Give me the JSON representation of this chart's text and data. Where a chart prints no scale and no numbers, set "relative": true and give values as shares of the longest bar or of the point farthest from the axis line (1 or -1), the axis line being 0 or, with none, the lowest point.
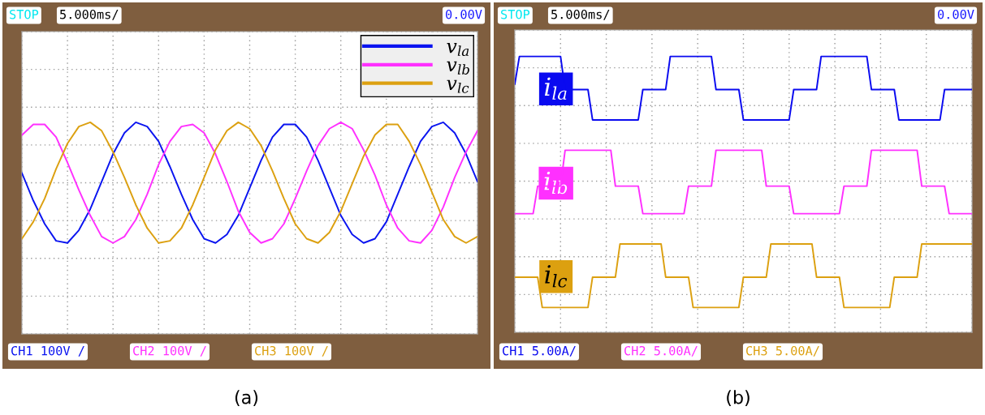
{
  "chart_data": [
    {
      "type": "line",
      "relative": true,
      "grid": true,
      "tick_labels": false,
      "legend": "top right",
      "xlabel": "(a)",
      "annotations": [
        "STOP",
        "5.000ms/",
        "0.00V",
        "CH1 100V /",
        "CH2 100V /",
        "CH3 100V /"
      ],
      "categories": [
        null,
        null,
        null,
        null,
        null,
        null,
        null,
        null,
        null,
        null,
        null,
        null,
        null,
        null,
        null,
        null,
        null,
        null,
        null,
        null,
        null,
        null,
        null,
        null,
        null,
        null,
        null,
        null,
        null,
        null,
        null,
        null,
        null,
        null,
        null,
        null,
        null,
        null,
        null,
        null,
        null
      ],
      "series": [
        {
          "name": "v$_{la}$",
          "color": "#0a14f0",
          "values": [
            0.76,
            0.63,
            0.52,
            0.44,
            0.43,
            0.49,
            0.59,
            0.72,
            0.85,
            0.95,
            1.0,
            0.98,
            0.91,
            0.79,
            0.66,
            0.54,
            0.45,
            0.43,
            0.47,
            0.56,
            0.69,
            0.82,
            0.93,
            0.99,
            0.99,
            0.93,
            0.82,
            0.69,
            0.56,
            0.47,
            0.43,
            0.45,
            0.53,
            0.66,
            0.79,
            0.91,
            0.98,
            1.0,
            0.95,
            0.85,
            0.72
          ]
        },
        {
          "name": "v$_{lb}$",
          "color": "#ff30ff",
          "values": [
            0.94,
            0.99,
            0.99,
            0.93,
            0.81,
            0.68,
            0.56,
            0.46,
            0.43,
            0.46,
            0.54,
            0.66,
            0.8,
            0.91,
            0.98,
            0.99,
            0.95,
            0.85,
            0.72,
            0.58,
            0.48,
            0.43,
            0.45,
            0.52,
            0.64,
            0.77,
            0.89,
            0.97,
            1.0,
            0.97,
            0.87,
            0.75,
            0.61,
            0.5,
            0.44,
            0.43,
            0.49,
            0.6,
            0.74,
            0.86,
            0.96
          ]
        },
        {
          "name": "v$_{lc}$",
          "color": "#dca010",
          "values": [
            0.45,
            0.53,
            0.64,
            0.78,
            0.9,
            0.98,
            1.0,
            0.96,
            0.86,
            0.74,
            0.61,
            0.5,
            0.43,
            0.44,
            0.5,
            0.61,
            0.74,
            0.87,
            0.96,
            1.0,
            0.97,
            0.89,
            0.77,
            0.64,
            0.52,
            0.45,
            0.43,
            0.48,
            0.58,
            0.71,
            0.84,
            0.94,
            0.99,
            0.99,
            0.91,
            0.8,
            0.67,
            0.54,
            0.46,
            0.43,
            0.46
          ]
        }
      ]
    },
    {
      "type": "line",
      "relative": true,
      "grid": true,
      "tick_labels": false,
      "xlabel": "(b)",
      "annotations": [
        "STOP",
        "5.000ms/",
        "0.00V",
        "CH1 5.00A/",
        "CH2 5.00A/",
        "CH3 5.00A/"
      ],
      "categories": [
        null,
        null,
        null,
        null,
        null,
        null,
        null,
        null,
        null,
        null,
        null,
        null,
        null,
        null,
        null,
        null,
        null,
        null,
        null,
        null,
        null,
        null,
        null,
        null,
        null,
        null,
        null,
        null,
        null,
        null,
        null,
        null,
        null,
        null,
        null,
        null,
        null,
        null,
        null,
        null,
        null,
        null,
        null,
        null,
        null,
        null,
        null,
        null,
        null,
        null,
        null,
        null,
        null,
        null,
        null,
        null,
        null,
        null,
        null,
        null,
        null,
        null,
        null,
        null,
        null,
        null,
        null,
        null,
        null,
        null,
        null,
        null,
        null,
        null,
        null,
        null,
        null,
        null,
        null,
        null,
        null,
        null,
        null,
        null,
        null,
        null,
        null,
        null,
        null,
        null,
        null,
        null,
        null,
        null,
        null,
        null,
        null,
        null,
        null,
        null,
        null
      ],
      "series": [
        {
          "name": "i$_{la}$",
          "color": "#0a0af0",
          "values": [
            0.9,
            1,
            1,
            1,
            1,
            1,
            1,
            1,
            1,
            1,
            1,
            0.88,
            0.88,
            0.88,
            0.88,
            0.88,
            0.88,
            0.77,
            0.77,
            0.77,
            0.77,
            0.77,
            0.77,
            0.77,
            0.77,
            0.77,
            0.77,
            0.77,
            0.88,
            0.88,
            0.88,
            0.88,
            0.88,
            0.88,
            1,
            1,
            1,
            1,
            1,
            1,
            1,
            1,
            1,
            1,
            0.88,
            0.88,
            0.88,
            0.88,
            0.88,
            0.88,
            0.77,
            0.77,
            0.77,
            0.77,
            0.77,
            0.77,
            0.77,
            0.77,
            0.77,
            0.77,
            0.77,
            0.88,
            0.88,
            0.88,
            0.88,
            0.88,
            0.88,
            1,
            1,
            1,
            1,
            1,
            1,
            1,
            1,
            1,
            1,
            1,
            0.88,
            0.88,
            0.88,
            0.88,
            0.88,
            0.88,
            0.77,
            0.77,
            0.77,
            0.77,
            0.77,
            0.77,
            0.77,
            0.77,
            0.77,
            0.77,
            0.88,
            0.88,
            0.88,
            0.88,
            0.88,
            0.88,
            0.88
          ]
        },
        {
          "name": "i$_{lb}$",
          "color": "#ff30ff",
          "values": [
            0.43,
            0.43,
            0.43,
            0.43,
            0.43,
            0.53,
            0.53,
            0.53,
            0.53,
            0.53,
            0.53,
            0.66,
            0.66,
            0.66,
            0.66,
            0.66,
            0.66,
            0.66,
            0.66,
            0.66,
            0.66,
            0.66,
            0.53,
            0.53,
            0.53,
            0.53,
            0.53,
            0.53,
            0.43,
            0.43,
            0.43,
            0.43,
            0.43,
            0.43,
            0.43,
            0.43,
            0.43,
            0.43,
            0.53,
            0.53,
            0.53,
            0.53,
            0.53,
            0.53,
            0.66,
            0.66,
            0.66,
            0.66,
            0.66,
            0.66,
            0.66,
            0.66,
            0.66,
            0.66,
            0.66,
            0.53,
            0.53,
            0.53,
            0.53,
            0.53,
            0.53,
            0.43,
            0.43,
            0.43,
            0.43,
            0.43,
            0.43,
            0.43,
            0.43,
            0.43,
            0.43,
            0.43,
            0.53,
            0.53,
            0.53,
            0.53,
            0.53,
            0.53,
            0.66,
            0.66,
            0.66,
            0.66,
            0.66,
            0.66,
            0.66,
            0.66,
            0.66,
            0.66,
            0.66,
            0.53,
            0.53,
            0.53,
            0.53,
            0.53,
            0.53,
            0.43,
            0.43,
            0.43,
            0.43,
            0.43,
            0.43
          ]
        },
        {
          "name": "i$_{lc}$",
          "color": "#dca010",
          "values": [
            0.2,
            0.2,
            0.2,
            0.2,
            0.2,
            0.2,
            0.09,
            0.09,
            0.09,
            0.09,
            0.09,
            0.09,
            0.09,
            0.09,
            0.09,
            0.09,
            0.09,
            0.2,
            0.2,
            0.2,
            0.2,
            0.2,
            0.2,
            0.32,
            0.32,
            0.32,
            0.32,
            0.32,
            0.32,
            0.32,
            0.32,
            0.32,
            0.32,
            0.2,
            0.2,
            0.2,
            0.2,
            0.2,
            0.2,
            0.09,
            0.09,
            0.09,
            0.09,
            0.09,
            0.09,
            0.09,
            0.09,
            0.09,
            0.09,
            0.09,
            0.2,
            0.2,
            0.2,
            0.2,
            0.2,
            0.2,
            0.32,
            0.32,
            0.32,
            0.32,
            0.32,
            0.32,
            0.32,
            0.32,
            0.32,
            0.32,
            0.2,
            0.2,
            0.2,
            0.2,
            0.2,
            0.2,
            0.09,
            0.09,
            0.09,
            0.09,
            0.09,
            0.09,
            0.09,
            0.09,
            0.09,
            0.09,
            0.09,
            0.2,
            0.2,
            0.2,
            0.2,
            0.2,
            0.2,
            0.32,
            0.32,
            0.32,
            0.32,
            0.32,
            0.32,
            0.32,
            0.32,
            0.32,
            0.32,
            0.32,
            0.32
          ]
        }
      ]
    }
  ]
}
